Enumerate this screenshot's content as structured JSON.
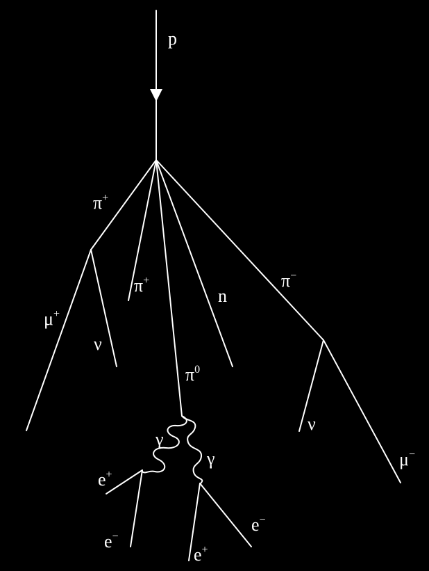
{
  "diagram": {
    "title": "",
    "colors": {
      "background": "#000000",
      "line": "#ffffff"
    },
    "particles": {
      "proton": {
        "symbol": "p",
        "charge": ""
      },
      "pi_plus_left": {
        "symbol": "π",
        "charge": "+"
      },
      "pi_plus_center": {
        "symbol": "π",
        "charge": "+"
      },
      "neutron": {
        "symbol": "n",
        "charge": ""
      },
      "pi_minus": {
        "symbol": "π",
        "charge": "−"
      },
      "pi_zero": {
        "symbol": "π",
        "charge": "0"
      },
      "muon_plus": {
        "symbol": "μ",
        "charge": "+"
      },
      "neutrino_left": {
        "symbol": "ν",
        "charge": ""
      },
      "neutrino_right": {
        "symbol": "ν",
        "charge": ""
      },
      "muon_minus": {
        "symbol": "μ",
        "charge": "−"
      },
      "gamma_left": {
        "symbol": "γ",
        "charge": ""
      },
      "gamma_right": {
        "symbol": "γ",
        "charge": ""
      },
      "positron_left": {
        "symbol": "e",
        "charge": "+"
      },
      "electron_left": {
        "symbol": "e",
        "charge": "−"
      },
      "positron_right": {
        "symbol": "e",
        "charge": "+"
      },
      "electron_right": {
        "symbol": "e",
        "charge": "−"
      }
    }
  }
}
